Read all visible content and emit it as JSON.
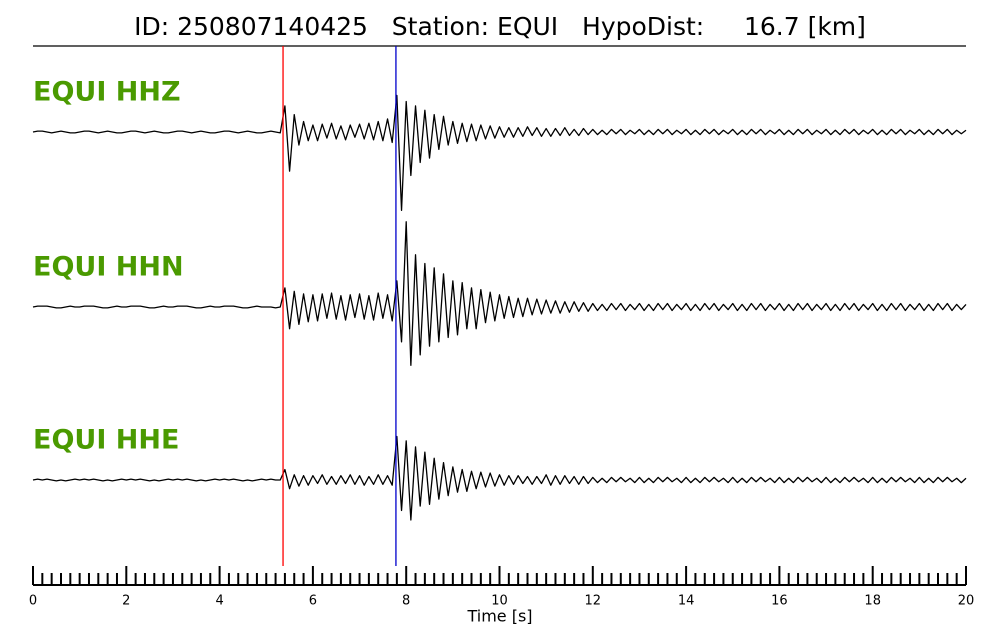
{
  "chart_data": {
    "type": "seismogram",
    "title": "ID: 250807140425   Station: EQUI   HypoDist:     16.7 [km]",
    "xlabel": "Time [s]",
    "xlim": [
      0,
      20
    ],
    "xticks": [
      0,
      2,
      4,
      6,
      8,
      10,
      12,
      14,
      16,
      18,
      20
    ],
    "xminorticks": [
      0.2,
      0.4,
      0.6,
      0.8,
      1,
      1.2,
      1.4,
      1.6,
      1.8,
      2.2,
      2.4,
      2.6,
      2.8,
      3,
      3.2,
      3.4,
      3.6,
      3.8,
      4.2,
      4.4,
      4.6,
      4.8,
      5,
      5.2,
      5.4,
      5.6,
      5.8,
      6.2,
      6.4,
      6.6,
      6.8,
      7,
      7.2,
      7.4,
      7.6,
      7.8,
      8.2,
      8.4,
      8.6,
      8.8,
      9,
      9.2,
      9.4,
      9.6,
      9.8,
      10.2,
      10.4,
      10.6,
      10.8,
      11,
      11.2,
      11.4,
      11.6,
      11.8,
      12.2,
      12.4,
      12.6,
      12.8,
      13,
      13.2,
      13.4,
      13.6,
      13.8,
      14.2,
      14.4,
      14.6,
      14.8,
      15,
      15.2,
      15.4,
      15.6,
      15.8,
      16.2,
      16.4,
      16.6,
      16.8,
      17,
      17.2,
      17.4,
      17.6,
      17.8,
      18.2,
      18.4,
      18.6,
      18.8,
      19,
      19.2,
      19.4,
      19.6,
      19.8
    ],
    "ylim": [
      -1,
      1
    ],
    "label_color": "#4a9a00",
    "markers": [
      {
        "x": 5.36,
        "color": "#ff0000"
      },
      {
        "x": 7.78,
        "color": "#0000cc"
      }
    ],
    "x": [
      0,
      0.1,
      0.2,
      0.3,
      0.4,
      0.5,
      0.6,
      0.7,
      0.8,
      0.9,
      1,
      1.1,
      1.2,
      1.3,
      1.4,
      1.5,
      1.6,
      1.7,
      1.8,
      1.9,
      2,
      2.1,
      2.2,
      2.3,
      2.4,
      2.5,
      2.6,
      2.7,
      2.8,
      2.9,
      3,
      3.1,
      3.2,
      3.3,
      3.4,
      3.5,
      3.6,
      3.7,
      3.8,
      3.9,
      4,
      4.1,
      4.2,
      4.3,
      4.4,
      4.5,
      4.6,
      4.7,
      4.8,
      4.9,
      5,
      5.1,
      5.2,
      5.3,
      5.4,
      5.5,
      5.6,
      5.7,
      5.8,
      5.9,
      6,
      6.1,
      6.2,
      6.3,
      6.4,
      6.5,
      6.6,
      6.7,
      6.8,
      6.9,
      7,
      7.1,
      7.2,
      7.3,
      7.4,
      7.5,
      7.6,
      7.7,
      7.8,
      7.9,
      8,
      8.1,
      8.2,
      8.3,
      8.4,
      8.5,
      8.6,
      8.7,
      8.8,
      8.9,
      9,
      9.1,
      9.2,
      9.3,
      9.4,
      9.5,
      9.6,
      9.7,
      9.8,
      9.9,
      10,
      10.1,
      10.2,
      10.3,
      10.4,
      10.5,
      10.6,
      10.7,
      10.8,
      10.9,
      11,
      11.1,
      11.2,
      11.3,
      11.4,
      11.5,
      11.6,
      11.7,
      11.8,
      11.9,
      12,
      12.1,
      12.2,
      12.3,
      12.4,
      12.5,
      12.6,
      12.7,
      12.8,
      12.9,
      13,
      13.1,
      13.2,
      13.3,
      13.4,
      13.5,
      13.6,
      13.7,
      13.8,
      13.9,
      14,
      14.1,
      14.2,
      14.3,
      14.4,
      14.5,
      14.6,
      14.7,
      14.8,
      14.9,
      15,
      15.1,
      15.2,
      15.3,
      15.4,
      15.5,
      15.6,
      15.7,
      15.8,
      15.9,
      16,
      16.1,
      16.2,
      16.3,
      16.4,
      16.5,
      16.6,
      16.7,
      16.8,
      16.9,
      17,
      17.1,
      17.2,
      17.3,
      17.4,
      17.5,
      17.6,
      17.7,
      17.8,
      17.9,
      18,
      18.1,
      18.2,
      18.3,
      18.4,
      18.5,
      18.6,
      18.7,
      18.8,
      18.9,
      19,
      19.1,
      19.2,
      19.3,
      19.4,
      19.5,
      19.6,
      19.7,
      19.8,
      19.9,
      20
    ],
    "series": [
      {
        "name": "EQUI HHZ",
        "color": "#000000",
        "values": [
          0,
          0.01,
          0.01,
          0,
          -0.01,
          0,
          0.01,
          0,
          -0.01,
          -0.01,
          0,
          0.01,
          0.01,
          0,
          -0.01,
          0,
          0.01,
          0,
          -0.01,
          -0.01,
          0,
          0.01,
          0.01,
          0,
          -0.01,
          0,
          0.01,
          0,
          -0.01,
          -0.01,
          0,
          0.01,
          0.01,
          0,
          -0.01,
          0,
          0.01,
          0,
          -0.01,
          -0.01,
          0,
          0.01,
          0.01,
          0,
          -0.01,
          0,
          0.01,
          0,
          -0.01,
          -0.01,
          0,
          0.01,
          0,
          -0.01,
          0.3,
          -0.45,
          0.2,
          -0.15,
          0.12,
          -0.1,
          0.08,
          -0.1,
          0.09,
          -0.07,
          0.1,
          -0.08,
          0.07,
          -0.09,
          0.08,
          -0.06,
          0.09,
          -0.08,
          0.1,
          -0.09,
          0.12,
          -0.1,
          0.15,
          -0.12,
          0.42,
          -0.9,
          0.35,
          -0.5,
          0.3,
          -0.35,
          0.25,
          -0.3,
          0.2,
          -0.2,
          0.18,
          -0.15,
          0.12,
          -0.13,
          0.1,
          -0.11,
          0.09,
          -0.1,
          0.08,
          -0.08,
          0.07,
          -0.07,
          0.06,
          -0.06,
          0.05,
          -0.06,
          0.05,
          -0.05,
          0.06,
          -0.04,
          0.05,
          -0.05,
          0.04,
          -0.05,
          0.04,
          -0.04,
          0.05,
          -0.04,
          0.03,
          -0.04,
          0.04,
          -0.03,
          0.03,
          -0.03,
          0.02,
          -0.03,
          0.03,
          -0.02,
          0.03,
          -0.03,
          0.02,
          -0.02,
          0.03,
          -0.03,
          0.02,
          -0.03,
          0.03,
          -0.02,
          0.03,
          -0.03,
          0.02,
          -0.02,
          0.03,
          -0.03,
          0.02,
          -0.03,
          0.03,
          -0.02,
          0.03,
          -0.03,
          0.02,
          -0.02,
          0.03,
          -0.03,
          0.02,
          -0.03,
          0.03,
          -0.02,
          0.03,
          -0.03,
          0.02,
          -0.02,
          0.03,
          -0.03,
          0.02,
          -0.03,
          0.03,
          -0.02,
          0.03,
          -0.03,
          0.02,
          -0.02,
          0.03,
          -0.03,
          0.02,
          -0.03,
          0.03,
          -0.02,
          0.03,
          -0.03,
          0.02,
          -0.02,
          0.03,
          -0.03,
          0.02,
          -0.03,
          0.03,
          -0.02,
          0.03,
          -0.03,
          0.02,
          -0.02,
          0.03,
          -0.03,
          0.02,
          -0.03,
          0.03,
          -0.02,
          0.03,
          -0.03,
          0.02,
          -0.02,
          0.02
        ]
      },
      {
        "name": "EQUI HHN",
        "color": "#000000",
        "values": [
          0,
          0.01,
          0.01,
          0.01,
          0,
          -0.01,
          -0.01,
          0,
          0.01,
          0,
          0,
          0.01,
          0.01,
          0.01,
          0,
          -0.01,
          -0.01,
          0,
          0.01,
          0,
          0,
          0.01,
          0.01,
          0.01,
          0,
          -0.01,
          -0.01,
          0,
          0.01,
          0,
          0,
          0.01,
          0.01,
          0.01,
          0,
          -0.01,
          -0.01,
          0,
          0.01,
          0,
          0,
          0.01,
          0.01,
          0.01,
          0,
          -0.01,
          -0.01,
          0,
          0.01,
          0,
          0,
          0,
          -0.01,
          0,
          0.22,
          -0.25,
          0.18,
          -0.2,
          0.15,
          -0.17,
          0.14,
          -0.16,
          0.15,
          -0.13,
          0.16,
          -0.14,
          0.13,
          -0.15,
          0.14,
          -0.12,
          0.15,
          -0.14,
          0.13,
          -0.15,
          0.16,
          -0.13,
          0.14,
          -0.16,
          0.3,
          -0.4,
          0.98,
          -0.67,
          0.6,
          -0.55,
          0.5,
          -0.45,
          0.45,
          -0.4,
          0.38,
          -0.35,
          0.3,
          -0.32,
          0.28,
          -0.25,
          0.22,
          -0.25,
          0.2,
          -0.18,
          0.17,
          -0.16,
          0.14,
          -0.13,
          0.12,
          -0.12,
          0.1,
          -0.11,
          0.1,
          -0.09,
          0.09,
          -0.08,
          0.08,
          -0.07,
          0.07,
          -0.07,
          0.06,
          -0.06,
          0.06,
          -0.05,
          0.05,
          -0.05,
          0.04,
          -0.04,
          0.03,
          -0.04,
          0.04,
          -0.03,
          0.04,
          -0.04,
          0.03,
          -0.03,
          0.04,
          -0.04,
          0.03,
          -0.04,
          0.04,
          -0.03,
          0.04,
          -0.04,
          0.03,
          -0.03,
          0.04,
          -0.04,
          0.03,
          -0.04,
          0.04,
          -0.03,
          0.04,
          -0.04,
          0.03,
          -0.03,
          0.04,
          -0.04,
          0.03,
          -0.04,
          0.04,
          -0.03,
          0.04,
          -0.04,
          0.03,
          -0.03,
          0.04,
          -0.04,
          0.03,
          -0.04,
          0.04,
          -0.03,
          0.04,
          -0.04,
          0.03,
          -0.03,
          0.04,
          -0.04,
          0.03,
          -0.04,
          0.04,
          -0.03,
          0.04,
          -0.04,
          0.03,
          -0.03,
          0.04,
          -0.04,
          0.03,
          -0.04,
          0.04,
          -0.03,
          0.04,
          -0.04,
          0.03,
          -0.03,
          0.04,
          -0.04,
          0.03,
          -0.04,
          0.04,
          -0.03,
          0.04,
          -0.04,
          0.03,
          -0.03,
          0.03
        ]
      },
      {
        "name": "EQUI HHE",
        "color": "#000000",
        "values": [
          0,
          0.01,
          0,
          0.01,
          0,
          -0.01,
          0,
          -0.01,
          0,
          0.01,
          0,
          0.01,
          0,
          0.01,
          0,
          -0.01,
          0,
          -0.01,
          0,
          0.01,
          0,
          0.01,
          0,
          0.01,
          0,
          -0.01,
          0,
          -0.01,
          0,
          0.01,
          0,
          0.01,
          0,
          0.01,
          0,
          -0.01,
          0,
          -0.01,
          0,
          0.01,
          0,
          0.01,
          0,
          0.01,
          0,
          -0.01,
          0,
          -0.01,
          0,
          0.01,
          0,
          0.01,
          0,
          0,
          0.12,
          -0.1,
          0.06,
          -0.07,
          0.05,
          -0.06,
          0.05,
          -0.04,
          0.06,
          -0.05,
          0.04,
          -0.05,
          0.05,
          -0.04,
          0.06,
          -0.05,
          0.05,
          -0.06,
          0.04,
          -0.05,
          0.06,
          -0.05,
          0.05,
          -0.06,
          0.5,
          -0.35,
          0.45,
          -0.46,
          0.38,
          -0.3,
          0.32,
          -0.28,
          0.25,
          -0.22,
          0.2,
          -0.18,
          0.15,
          -0.14,
          0.12,
          -0.13,
          0.1,
          -0.1,
          0.09,
          -0.08,
          0.08,
          -0.07,
          0.06,
          -0.06,
          0.05,
          -0.05,
          0.05,
          -0.04,
          0.04,
          -0.05,
          0.04,
          -0.04,
          0.06,
          -0.06,
          0.05,
          -0.05,
          0.05,
          -0.04,
          0.04,
          -0.05,
          0.04,
          -0.04,
          0.03,
          -0.03,
          0.02,
          -0.03,
          0.03,
          -0.02,
          0.03,
          -0.02,
          0.02,
          -0.03,
          0.03,
          -0.03,
          0.02,
          -0.03,
          0.03,
          -0.02,
          0.03,
          -0.02,
          0.02,
          -0.03,
          0.03,
          -0.03,
          0.02,
          -0.03,
          0.03,
          -0.02,
          0.03,
          -0.02,
          0.02,
          -0.03,
          0.03,
          -0.03,
          0.02,
          -0.03,
          0.03,
          -0.02,
          0.03,
          -0.02,
          0.02,
          -0.03,
          0.03,
          -0.03,
          0.02,
          -0.03,
          0.03,
          -0.02,
          0.03,
          -0.02,
          0.02,
          -0.03,
          0.03,
          -0.03,
          0.02,
          -0.03,
          0.03,
          -0.02,
          0.03,
          -0.02,
          0.02,
          -0.03,
          0.03,
          -0.03,
          0.02,
          -0.03,
          0.03,
          -0.02,
          0.03,
          -0.02,
          0.02,
          -0.03,
          0.03,
          -0.03,
          0.02,
          -0.03,
          0.03,
          -0.02,
          0.03,
          -0.02,
          0.02,
          -0.03,
          0.02
        ]
      }
    ]
  }
}
